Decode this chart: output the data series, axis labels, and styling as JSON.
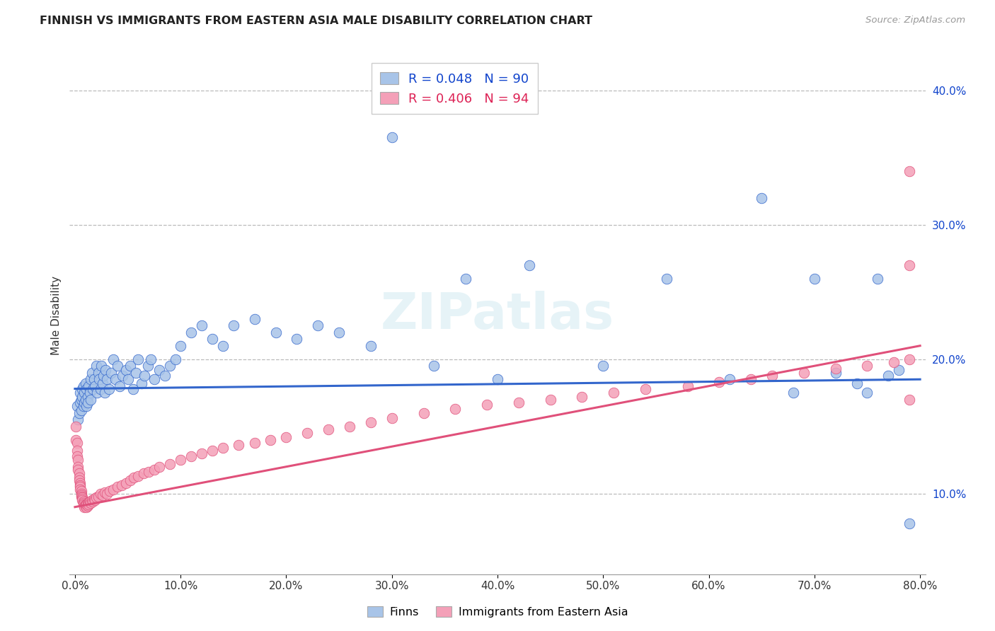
{
  "title": "FINNISH VS IMMIGRANTS FROM EASTERN ASIA MALE DISABILITY CORRELATION CHART",
  "source": "Source: ZipAtlas.com",
  "ylabel": "Male Disability",
  "xlim": [
    -0.005,
    0.805
  ],
  "ylim": [
    0.04,
    0.425
  ],
  "yticks": [
    0.1,
    0.2,
    0.3,
    0.4
  ],
  "xticks": [
    0.0,
    0.1,
    0.2,
    0.3,
    0.4,
    0.5,
    0.6,
    0.7,
    0.8
  ],
  "legend_labels": [
    "Finns",
    "Immigrants from Eastern Asia"
  ],
  "r_finns": 0.048,
  "n_finns": 90,
  "r_immigrants": 0.406,
  "n_immigrants": 94,
  "color_finns": "#a8c4e8",
  "color_immigrants": "#f4a0b8",
  "color_finns_line": "#3366cc",
  "color_immigrants_line": "#e0507a",
  "color_finns_r_text": "#1144cc",
  "color_immigrants_r_text": "#dd2255",
  "color_n_text": "#dd2255",
  "watermark": "ZIPatlas",
  "finns_line_y0": 0.178,
  "finns_line_y1": 0.185,
  "imm_line_y0": 0.09,
  "imm_line_y1": 0.21,
  "finns_x": [
    0.002,
    0.003,
    0.004,
    0.005,
    0.005,
    0.006,
    0.006,
    0.007,
    0.007,
    0.008,
    0.008,
    0.009,
    0.009,
    0.01,
    0.01,
    0.011,
    0.011,
    0.012,
    0.012,
    0.013,
    0.014,
    0.015,
    0.015,
    0.016,
    0.017,
    0.018,
    0.019,
    0.02,
    0.021,
    0.022,
    0.023,
    0.024,
    0.025,
    0.026,
    0.027,
    0.028,
    0.029,
    0.03,
    0.032,
    0.034,
    0.036,
    0.038,
    0.04,
    0.042,
    0.045,
    0.048,
    0.05,
    0.052,
    0.055,
    0.058,
    0.06,
    0.063,
    0.066,
    0.069,
    0.072,
    0.075,
    0.08,
    0.085,
    0.09,
    0.095,
    0.1,
    0.11,
    0.12,
    0.13,
    0.14,
    0.15,
    0.17,
    0.19,
    0.21,
    0.23,
    0.25,
    0.28,
    0.3,
    0.34,
    0.37,
    0.4,
    0.43,
    0.5,
    0.56,
    0.62,
    0.65,
    0.68,
    0.7,
    0.72,
    0.74,
    0.75,
    0.76,
    0.77,
    0.78,
    0.79
  ],
  "finns_y": [
    0.165,
    0.155,
    0.16,
    0.168,
    0.175,
    0.17,
    0.162,
    0.172,
    0.178,
    0.165,
    0.18,
    0.168,
    0.175,
    0.17,
    0.182,
    0.165,
    0.178,
    0.172,
    0.168,
    0.18,
    0.175,
    0.185,
    0.17,
    0.19,
    0.178,
    0.185,
    0.18,
    0.195,
    0.175,
    0.19,
    0.185,
    0.178,
    0.195,
    0.182,
    0.188,
    0.175,
    0.192,
    0.185,
    0.178,
    0.19,
    0.2,
    0.185,
    0.195,
    0.18,
    0.188,
    0.192,
    0.185,
    0.195,
    0.178,
    0.19,
    0.2,
    0.182,
    0.188,
    0.195,
    0.2,
    0.185,
    0.192,
    0.188,
    0.195,
    0.2,
    0.21,
    0.22,
    0.225,
    0.215,
    0.21,
    0.225,
    0.23,
    0.22,
    0.215,
    0.225,
    0.22,
    0.21,
    0.365,
    0.195,
    0.26,
    0.185,
    0.27,
    0.195,
    0.26,
    0.185,
    0.32,
    0.175,
    0.26,
    0.19,
    0.182,
    0.175,
    0.26,
    0.188,
    0.192,
    0.078
  ],
  "immigrants_x": [
    0.001,
    0.001,
    0.002,
    0.002,
    0.002,
    0.003,
    0.003,
    0.003,
    0.004,
    0.004,
    0.004,
    0.005,
    0.005,
    0.005,
    0.005,
    0.006,
    0.006,
    0.006,
    0.006,
    0.007,
    0.007,
    0.007,
    0.008,
    0.008,
    0.008,
    0.009,
    0.009,
    0.01,
    0.01,
    0.011,
    0.011,
    0.012,
    0.012,
    0.013,
    0.013,
    0.014,
    0.015,
    0.016,
    0.017,
    0.018,
    0.019,
    0.02,
    0.022,
    0.024,
    0.026,
    0.028,
    0.03,
    0.033,
    0.036,
    0.04,
    0.044,
    0.048,
    0.052,
    0.056,
    0.06,
    0.065,
    0.07,
    0.075,
    0.08,
    0.09,
    0.1,
    0.11,
    0.12,
    0.13,
    0.14,
    0.155,
    0.17,
    0.185,
    0.2,
    0.22,
    0.24,
    0.26,
    0.28,
    0.3,
    0.33,
    0.36,
    0.39,
    0.42,
    0.45,
    0.48,
    0.51,
    0.54,
    0.58,
    0.61,
    0.64,
    0.66,
    0.69,
    0.72,
    0.75,
    0.775,
    0.79,
    0.79,
    0.79,
    0.79
  ],
  "immigrants_y": [
    0.15,
    0.14,
    0.138,
    0.132,
    0.128,
    0.125,
    0.12,
    0.118,
    0.115,
    0.112,
    0.11,
    0.108,
    0.106,
    0.105,
    0.103,
    0.102,
    0.1,
    0.099,
    0.098,
    0.097,
    0.096,
    0.095,
    0.094,
    0.093,
    0.092,
    0.091,
    0.09,
    0.092,
    0.091,
    0.09,
    0.092,
    0.093,
    0.091,
    0.093,
    0.092,
    0.094,
    0.093,
    0.095,
    0.094,
    0.096,
    0.095,
    0.097,
    0.098,
    0.1,
    0.099,
    0.101,
    0.1,
    0.102,
    0.103,
    0.105,
    0.106,
    0.108,
    0.11,
    0.112,
    0.113,
    0.115,
    0.116,
    0.118,
    0.12,
    0.122,
    0.125,
    0.128,
    0.13,
    0.132,
    0.134,
    0.136,
    0.138,
    0.14,
    0.142,
    0.145,
    0.148,
    0.15,
    0.153,
    0.156,
    0.16,
    0.163,
    0.166,
    0.168,
    0.17,
    0.172,
    0.175,
    0.178,
    0.18,
    0.183,
    0.185,
    0.188,
    0.19,
    0.193,
    0.195,
    0.198,
    0.2,
    0.34,
    0.27,
    0.17
  ]
}
